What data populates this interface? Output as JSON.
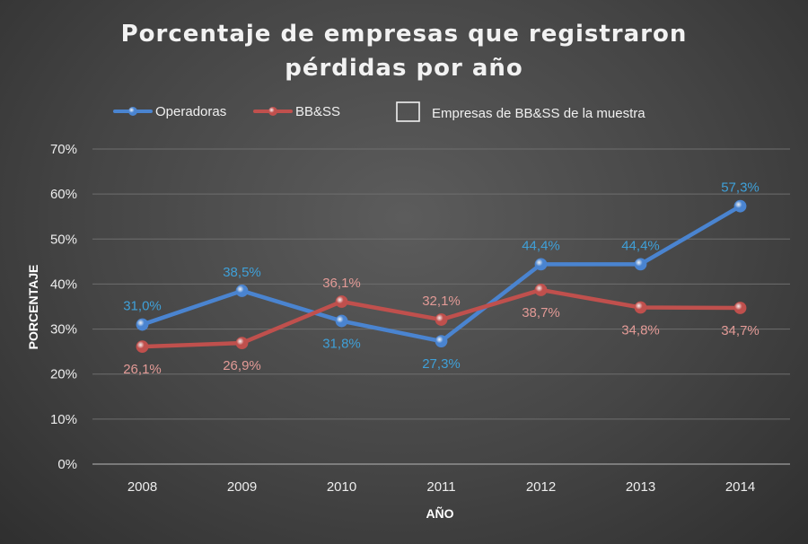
{
  "chart_data": {
    "type": "line",
    "title_lines": [
      "Porcentaje de empresas que registraron",
      "pérdidas por año"
    ],
    "xlabel": "AÑO",
    "ylabel": "PORCENTAJE",
    "categories": [
      "2008",
      "2009",
      "2010",
      "2011",
      "2012",
      "2013",
      "2014"
    ],
    "y_ticks": [
      "0%",
      "10%",
      "20%",
      "30%",
      "40%",
      "50%",
      "60%",
      "70%"
    ],
    "ylim": [
      0,
      70
    ],
    "grid": true,
    "legend_position": "top",
    "series": [
      {
        "name": "Operadoras",
        "color": "#4a84d0",
        "label_color": "#3fa0d8",
        "values": [
          31.0,
          38.5,
          31.8,
          27.3,
          44.4,
          44.4,
          57.3
        ],
        "labels": [
          "31,0%",
          "38,5%",
          "31,8%",
          "27,3%",
          "44,4%",
          "44,4%",
          "57,3%"
        ],
        "label_pos": [
          "above",
          "above",
          "below",
          "below",
          "above",
          "above",
          "above"
        ]
      },
      {
        "name": "BB&SS",
        "color": "#c0504d",
        "label_color": "#e29a96",
        "values": [
          26.1,
          26.9,
          36.1,
          32.1,
          38.7,
          34.8,
          34.7
        ],
        "labels": [
          "26,1%",
          "26,9%",
          "36,1%",
          "32,1%",
          "38,7%",
          "34,8%",
          "34,7%"
        ],
        "label_pos": [
          "below",
          "below",
          "above",
          "above",
          "below",
          "below",
          "below"
        ]
      }
    ],
    "legend_box_label": "Empresas de BB&SS de  la muestra"
  }
}
